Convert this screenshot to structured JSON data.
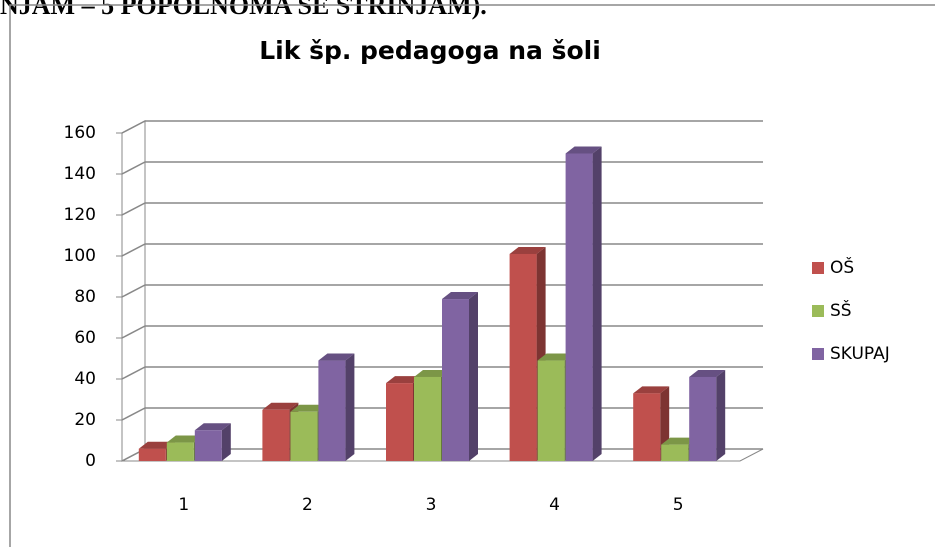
{
  "header_fragment": "NJAM – 5 POPOLNOMA SE STRINJAM).",
  "chart_data": {
    "type": "bar3d",
    "title": "Lik šp. pedagoga na šoli",
    "categories": [
      "1",
      "2",
      "3",
      "4",
      "5"
    ],
    "series": [
      {
        "name": "OŠ",
        "color": "#c0504d",
        "values": [
          6,
          25,
          38,
          101,
          33
        ]
      },
      {
        "name": "SŠ",
        "color": "#9bbb59",
        "values": [
          9,
          24,
          41,
          49,
          8
        ]
      },
      {
        "name": "SKUPAJ",
        "color": "#8064a2",
        "values": [
          15,
          49,
          79,
          150,
          41
        ]
      }
    ],
    "ylim": [
      0,
      160
    ],
    "yticks": [
      0,
      20,
      40,
      60,
      80,
      100,
      120,
      140,
      160
    ],
    "grid": true,
    "legend": "right"
  }
}
